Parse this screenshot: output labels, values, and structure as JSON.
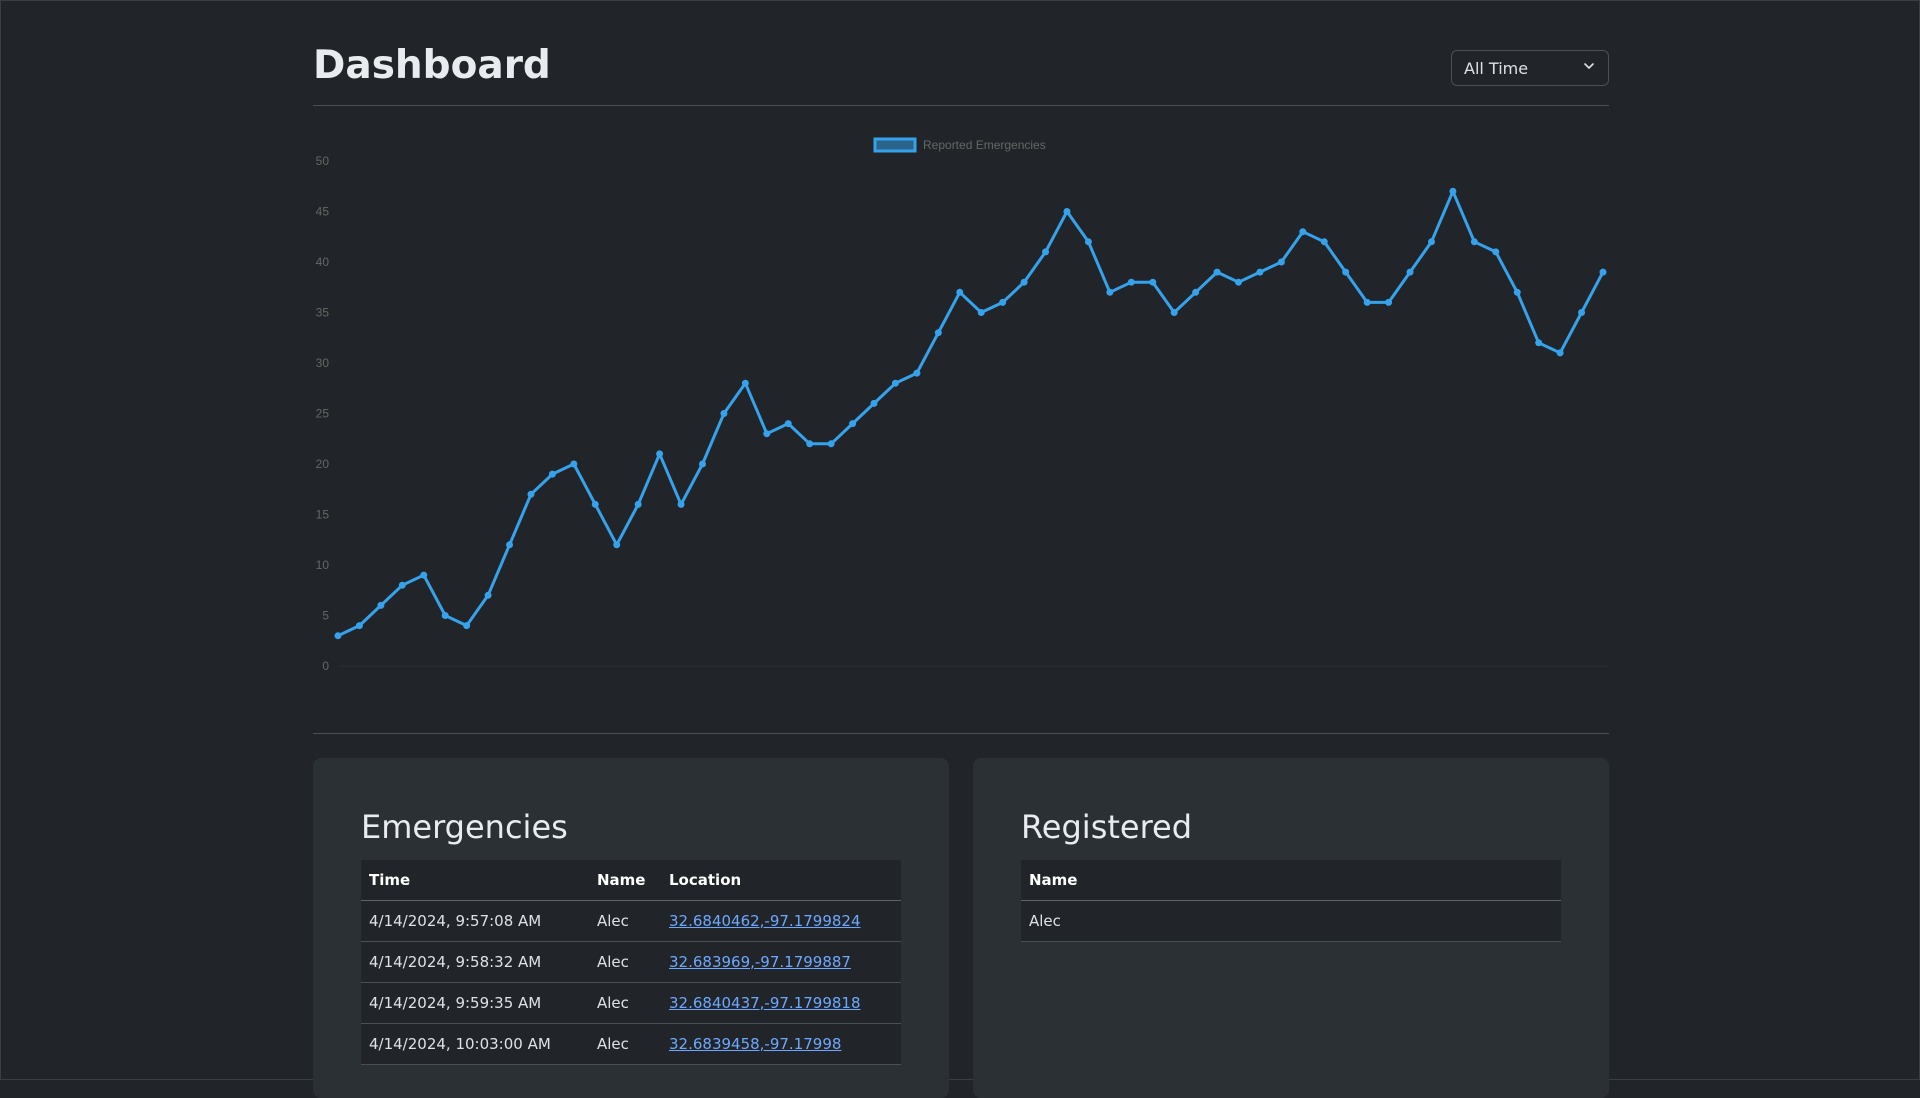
{
  "header": {
    "title": "Dashboard",
    "range_select": {
      "value": "All Time",
      "icon": "chevron-down-icon"
    }
  },
  "chart_data": {
    "type": "line",
    "series": [
      {
        "name": "Reported Emergencies",
        "color": "#36a2eb",
        "values": [
          3,
          4,
          6,
          8,
          9,
          5,
          4,
          7,
          12,
          17,
          19,
          20,
          16,
          12,
          16,
          21,
          16,
          20,
          25,
          28,
          23,
          24,
          22,
          22,
          24,
          26,
          28,
          29,
          33,
          37,
          35,
          36,
          38,
          41,
          45,
          42,
          37,
          38,
          38,
          35,
          37,
          39,
          38,
          39,
          40,
          43,
          42,
          39,
          36,
          36,
          39,
          42,
          47,
          42,
          41,
          37,
          32,
          31,
          35,
          39
        ]
      }
    ],
    "ylim": [
      0,
      50
    ],
    "yticks": [
      "0",
      "5",
      "10",
      "15",
      "20",
      "25",
      "30",
      "35",
      "40",
      "45",
      "50"
    ],
    "legend_position": "top-center",
    "grid": false
  },
  "emergencies": {
    "title": "Emergencies",
    "columns": [
      "Time",
      "Name",
      "Location"
    ],
    "rows": [
      {
        "time": "4/14/2024, 9:57:08 AM",
        "name": "Alec",
        "location": "32.6840462,-97.1799824"
      },
      {
        "time": "4/14/2024, 9:58:32 AM",
        "name": "Alec",
        "location": "32.683969,-97.1799887"
      },
      {
        "time": "4/14/2024, 9:59:35 AM",
        "name": "Alec",
        "location": "32.6840437,-97.1799818"
      },
      {
        "time": "4/14/2024, 10:03:00 AM",
        "name": "Alec",
        "location": "32.6839458,-97.17998"
      }
    ]
  },
  "registered": {
    "title": "Registered",
    "columns": [
      "Name"
    ],
    "rows": [
      {
        "name": "Alec"
      }
    ]
  }
}
